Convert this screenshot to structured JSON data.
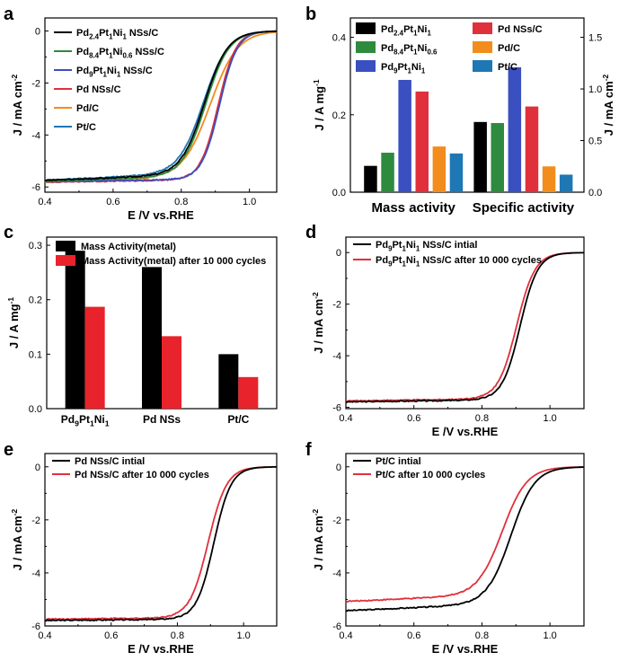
{
  "chart_data": [
    {
      "panel": "a",
      "type": "line",
      "xlabel": "E /V vs.RHE",
      "ylabel": "J / mA cm-2",
      "xlim": [
        0.4,
        1.08
      ],
      "ylim": [
        -6.2,
        0.5
      ],
      "xticks": [
        0.4,
        0.6,
        0.8,
        1.0
      ],
      "yticks": [
        0,
        -2,
        -4,
        -6
      ],
      "xtick_labels": [
        "0.4",
        "0.6",
        "0.8",
        "1.0"
      ],
      "ytick_labels": [
        "0",
        "-2",
        "-4",
        "-6"
      ],
      "legend_position": "top-left",
      "series": [
        {
          "name": "Pd2.4Pt1Ni1 NSs/C",
          "label": {
            "m": "Pd",
            "s1": "2.4",
            "a": "Pt",
            "s2": "1",
            "b": "Ni",
            "s3": "1",
            "tail": " NSs/C"
          },
          "color": "#000000",
          "jl": -5.55,
          "e0": 0.868,
          "w": 0.034,
          "slope": 1.4
        },
        {
          "name": "Pd8.4Pt1Ni0.6 NSs/C",
          "label": {
            "m": "Pd",
            "s1": "8.4",
            "a": "Pt",
            "s2": "1",
            "b": "Ni",
            "s3": "0.6",
            "tail": " NSs/C"
          },
          "color": "#2e8b3e",
          "jl": -5.6,
          "e0": 0.872,
          "w": 0.034,
          "slope": 1.3
        },
        {
          "name": "Pd9Pt1Ni1 NSs/C",
          "label": {
            "m": "Pd",
            "s1": "9",
            "a": "Pt",
            "s2": "1",
            "b": "Ni",
            "s3": "1",
            "tail": " NSs/C"
          },
          "color": "#3a4fc0",
          "jl": -5.72,
          "e0": 0.912,
          "w": 0.026,
          "slope": 0.5
        },
        {
          "name": "Pd NSs/C",
          "label": {
            "m": "Pd NSs/C"
          },
          "color": "#e0303c",
          "jl": -5.74,
          "e0": 0.908,
          "w": 0.026,
          "slope": 0.5
        },
        {
          "name": "Pd/C",
          "label": {
            "m": "Pd/C"
          },
          "color": "#f28c1c",
          "jl": -5.65,
          "e0": 0.885,
          "w": 0.04,
          "slope": 1.2
        },
        {
          "name": "Pt/C",
          "label": {
            "m": "Pt/C"
          },
          "color": "#1f77b4",
          "jl": -5.5,
          "e0": 0.865,
          "w": 0.036,
          "slope": 1.7
        }
      ]
    },
    {
      "panel": "b",
      "type": "bar",
      "categories": [
        "Mass activity",
        "Specific activity"
      ],
      "ylabel": "J / A mg-1",
      "ylabel_right": "J / mA cm-2",
      "ylim": [
        0,
        0.45
      ],
      "ylim_right": [
        0,
        1.6875
      ],
      "yticks": [
        0.0,
        0.2,
        0.4
      ],
      "ytick_labels": [
        "0.0",
        "0.2",
        "0.4"
      ],
      "yticks_right": [
        0.0,
        0.5,
        1.0,
        1.5
      ],
      "ytick_labels_right": [
        "0.0",
        "0.5",
        "1.0",
        "1.5"
      ],
      "legend_position": "top",
      "series": [
        {
          "name": "Pd2.4Pt1Ni1",
          "label": {
            "m": "Pd",
            "s1": "2.4",
            "a": "Pt",
            "s2": "1",
            "b": "Ni",
            "s3": "1"
          },
          "color": "#000000",
          "mass_activity": 0.068,
          "specific_activity": 0.68
        },
        {
          "name": "Pd NSs/C",
          "label": {
            "m": "Pd NSs/C"
          },
          "color": "#e0303c",
          "mass_activity": 0.26,
          "specific_activity": 0.83
        },
        {
          "name": "Pd8.4Pt1Ni0.6",
          "label": {
            "m": "Pd",
            "s1": "8.4",
            "a": "Pt",
            "s2": "1",
            "b": "Ni",
            "s3": "0.6"
          },
          "color": "#2e8b3e",
          "mass_activity": 0.102,
          "specific_activity": 0.67
        },
        {
          "name": "Pd/C",
          "label": {
            "m": "Pd/C"
          },
          "color": "#f28c1c",
          "mass_activity": 0.118,
          "specific_activity": 0.25
        },
        {
          "name": "Pd9Pt1Ni1",
          "label": {
            "m": "Pd",
            "s1": "9",
            "a": "Pt",
            "s2": "1",
            "b": "Ni",
            "s3": "1"
          },
          "color": "#3a4fc0",
          "mass_activity": 0.29,
          "specific_activity": 1.21
        },
        {
          "name": "Pt/C",
          "label": {
            "m": "Pt/C"
          },
          "color": "#1f77b4",
          "mass_activity": 0.1,
          "specific_activity": 0.17
        }
      ],
      "bar_order": [
        "Pd2.4Pt1Ni1",
        "Pd8.4Pt1Ni0.6",
        "Pd9Pt1Ni1",
        "Pd NSs/C",
        "Pd/C",
        "Pt/C"
      ]
    },
    {
      "panel": "c",
      "type": "bar",
      "categories": [
        {
          "label": {
            "m": "Pd",
            "s1": "9",
            "a": "Pt",
            "s2": "1",
            "b": "Ni",
            "s3": "1"
          }
        },
        {
          "label": {
            "m": "Pd NSs"
          }
        },
        {
          "label": {
            "m": "Pt/C"
          }
        }
      ],
      "ylabel": "J / A mg-1",
      "ylim": [
        0,
        0.315
      ],
      "yticks": [
        0.0,
        0.1,
        0.2,
        0.3
      ],
      "ytick_labels": [
        "0.0",
        "0.1",
        "0.2",
        "0.3"
      ],
      "legend_position": "top",
      "series": [
        {
          "name": "Mass Activity(metal)",
          "color": "#000000",
          "values": [
            0.29,
            0.26,
            0.1
          ]
        },
        {
          "name": "Mass Activity(metal) after 10 000 cycles",
          "color": "#e8232b",
          "values": [
            0.187,
            0.133,
            0.058
          ]
        }
      ]
    },
    {
      "panel": "d",
      "type": "line",
      "xlabel": "E /V vs.RHE",
      "ylabel": "J / mA cm-2",
      "xlim": [
        0.4,
        1.1
      ],
      "ylim": [
        -6.05,
        0.6
      ],
      "xticks": [
        0.4,
        0.6,
        0.8,
        1.0
      ],
      "yticks": [
        0,
        -2,
        -4,
        -6
      ],
      "xtick_labels": [
        "0.4",
        "0.6",
        "0.8",
        "1.0"
      ],
      "ytick_labels": [
        "0",
        "-2",
        "-4",
        "-6"
      ],
      "legend_position": "top-left",
      "series": [
        {
          "name": "Pd9Pt1Ni1 NSs/C intial",
          "label": {
            "m": "Pd",
            "s1": "9",
            "a": "Pt",
            "s2": "1",
            "b": "Ni",
            "s3": "1",
            "tail": " NSs/C intial"
          },
          "color": "#000000",
          "jl": -5.72,
          "e0": 0.912,
          "w": 0.026,
          "slope": 0.5
        },
        {
          "name": "Pd9Pt1Ni1 NSs/C after 10 000 cycles",
          "label": {
            "m": "Pd",
            "s1": "9",
            "a": "Pt",
            "s2": "1",
            "b": "Ni",
            "s3": "1",
            "tail": " NSs/C after 10 000 cycles"
          },
          "color": "#e0303c",
          "jl": -5.68,
          "e0": 0.902,
          "w": 0.027,
          "slope": 0.5
        }
      ]
    },
    {
      "panel": "e",
      "type": "line",
      "xlabel": "E /V vs.RHE",
      "ylabel": "J / mA cm-2",
      "xlim": [
        0.4,
        1.1
      ],
      "ylim": [
        -6.0,
        0.5
      ],
      "xticks": [
        0.4,
        0.6,
        0.8,
        1.0
      ],
      "yticks": [
        0,
        -2,
        -4,
        -6
      ],
      "xtick_labels": [
        "0.4",
        "0.6",
        "0.8",
        "1.0"
      ],
      "ytick_labels": [
        "0",
        "-2",
        "-4",
        "-6"
      ],
      "legend_position": "top-left",
      "series": [
        {
          "name": "Pd NSs/C intial",
          "label": {
            "m": "Pd NSs/C intial"
          },
          "color": "#000000",
          "jl": -5.75,
          "e0": 0.91,
          "w": 0.026,
          "slope": 0.3
        },
        {
          "name": "Pd NSs/C after 10 000 cycles",
          "label": {
            "m": "Pd NSs/C after 10 000 cycles"
          },
          "color": "#e0303c",
          "jl": -5.7,
          "e0": 0.893,
          "w": 0.028,
          "slope": 0.3
        }
      ]
    },
    {
      "panel": "f",
      "type": "line",
      "xlabel": "E /V vs.RHE",
      "ylabel": "J / mA cm-2",
      "xlim": [
        0.4,
        1.1
      ],
      "ylim": [
        -6.0,
        0.5
      ],
      "xticks": [
        0.4,
        0.6,
        0.8,
        1.0
      ],
      "yticks": [
        0,
        -2,
        -4,
        -6
      ],
      "xtick_labels": [
        "0.4",
        "0.6",
        "0.8",
        "1.0"
      ],
      "ytick_labels": [
        "0",
        "-2",
        "-4",
        "-6"
      ],
      "legend_position": "top-left",
      "series": [
        {
          "name": "Pt/C intial",
          "label": {
            "m": "Pt/C intial"
          },
          "color": "#000000",
          "jl": -5.2,
          "e0": 0.885,
          "w": 0.035,
          "slope": 1.6
        },
        {
          "name": "Pt/C after 10 000 cycles",
          "label": {
            "m": "Pt/C after 10 000 cycles"
          },
          "color": "#e0303c",
          "jl": -4.85,
          "e0": 0.86,
          "w": 0.036,
          "slope": 1.6
        }
      ]
    }
  ],
  "panel_letters": [
    "a",
    "b",
    "c",
    "d",
    "e",
    "f"
  ]
}
